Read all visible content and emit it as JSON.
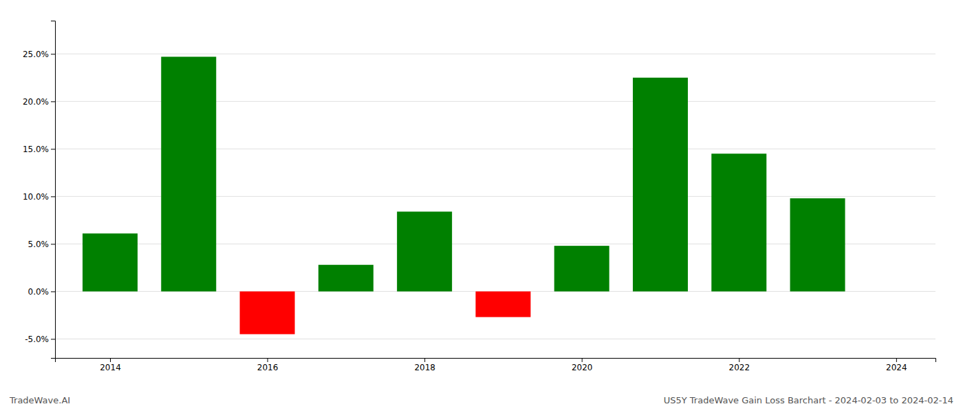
{
  "chart_data": {
    "type": "bar",
    "x": [
      2014,
      2015,
      2016,
      2017,
      2018,
      2019,
      2020,
      2021,
      2022,
      2023
    ],
    "values": [
      0.061,
      0.247,
      -0.045,
      0.028,
      0.084,
      -0.027,
      0.048,
      0.225,
      0.145,
      0.098
    ],
    "colors": [
      "#008000",
      "#008000",
      "#ff0000",
      "#008000",
      "#008000",
      "#ff0000",
      "#008000",
      "#008000",
      "#008000",
      "#008000"
    ],
    "xlim": [
      2013.3,
      2024.5
    ],
    "xticks": [
      2014,
      2016,
      2018,
      2020,
      2022,
      2024
    ],
    "ylim": [
      -0.07,
      0.285
    ],
    "yticks": [
      {
        "value": -0.05,
        "label": "-5.0%"
      },
      {
        "value": 0.0,
        "label": "0.0%"
      },
      {
        "value": 0.05,
        "label": "5.0%"
      },
      {
        "value": 0.1,
        "label": "10.0%"
      },
      {
        "value": 0.15,
        "label": "15.0%"
      },
      {
        "value": 0.2,
        "label": "20.0%"
      },
      {
        "value": 0.25,
        "label": "25.0%"
      }
    ],
    "grid": true,
    "annotations": [
      "TradeWave.AI",
      "US5Y TradeWave Gain Loss Barchart - 2024-02-03 to 2024-02-14"
    ]
  }
}
